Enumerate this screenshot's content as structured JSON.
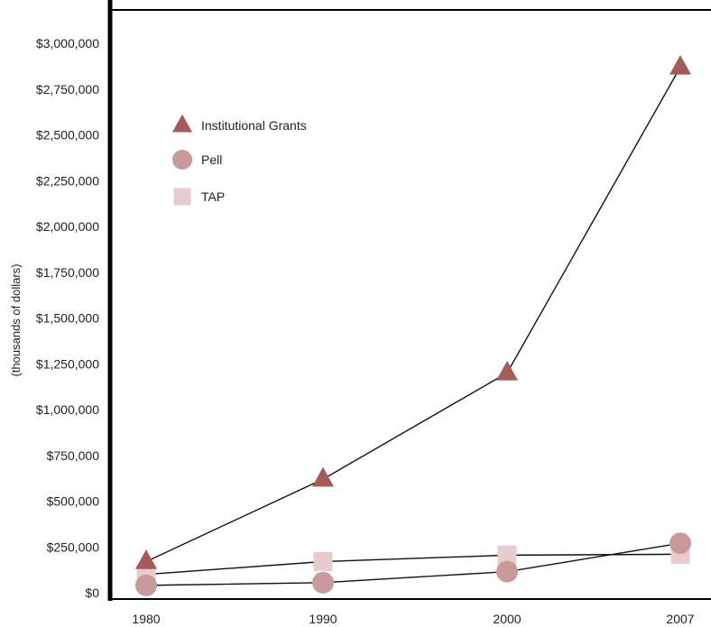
{
  "chart_data": {
    "type": "line",
    "x": [
      "1980",
      "1990",
      "2000",
      "2007"
    ],
    "ylabel": "(thousands of dollars)",
    "ylim": [
      0,
      3000000
    ],
    "yticks": [
      0,
      250000,
      500000,
      750000,
      1000000,
      1250000,
      1500000,
      1750000,
      2000000,
      2250000,
      2500000,
      2750000,
      3000000
    ],
    "ytick_labels": [
      "$0",
      "$250,000",
      "$500,000",
      "$750,000",
      "$1,000,000",
      "$1,250,000",
      "$1,500,000",
      "$1,750,000",
      "$2,000,000",
      "$2,250,000",
      "$2,500,000",
      "$2,750,000",
      "$3,000,000"
    ],
    "legend_position": "upper-left",
    "grid": false,
    "series": [
      {
        "name": "Institutional Grants",
        "marker": "triangle",
        "color": "#a75a5a",
        "values": [
          170000,
          620000,
          1200000,
          2870000
        ]
      },
      {
        "name": "Pell",
        "marker": "circle",
        "color": "#c99a9a",
        "values": [
          40000,
          55000,
          115000,
          270000
        ]
      },
      {
        "name": "TAP",
        "marker": "square",
        "color": "#e8cccc",
        "values": [
          100000,
          170000,
          205000,
          210000
        ]
      }
    ]
  }
}
